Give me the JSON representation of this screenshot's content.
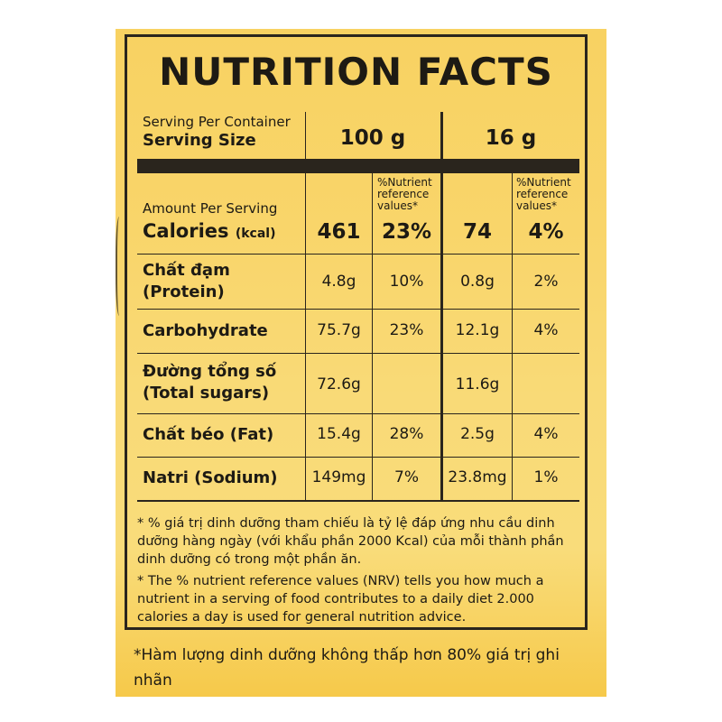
{
  "title": "NUTRITION FACTS",
  "header": {
    "serving_per_container": "Serving Per Container",
    "serving_size": "Serving Size",
    "col_100": "100 g",
    "col_16": "16 g"
  },
  "nrv_header": "%Nutrient reference values*",
  "calories": {
    "amount_per_serving": "Amount Per Serving",
    "label": "Calories",
    "unit": "(kcal)",
    "v100": "461",
    "p100": "23%",
    "v16": "74",
    "p16": "4%"
  },
  "rows": [
    {
      "label1": "Chất đạm",
      "label2": "(Protein)",
      "v100": "4.8g",
      "p100": "10%",
      "v16": "0.8g",
      "p16": "2%"
    },
    {
      "label1": "Carbohydrate",
      "label2": "",
      "v100": "75.7g",
      "p100": "23%",
      "v16": "12.1g",
      "p16": "4%"
    },
    {
      "label1": "Đường tổng số",
      "label2": "(Total sugars)",
      "v100": "72.6g",
      "p100": "",
      "v16": "11.6g",
      "p16": ""
    },
    {
      "label1": "Chất béo (Fat)",
      "label2": "",
      "v100": "15.4g",
      "p100": "28%",
      "v16": "2.5g",
      "p16": "4%"
    },
    {
      "label1": "Natri (Sodium)",
      "label2": "",
      "v100": "149mg",
      "p100": "7%",
      "v16": "23.8mg",
      "p16": "1%"
    }
  ],
  "notes": {
    "vi": "* % giá trị dinh dưỡng tham chiếu là tỷ lệ đáp ứng nhu cầu dinh dưỡng hàng ngày (với khẩu phần 2000 Kcal) của mỗi thành phần dinh dưỡng có trong một phần ăn.",
    "en": "* The % nutrient reference values (NRV) tells you how much a nutrient in a serving of food contributes to a daily diet 2.000 calories a day is used for general nutrition advice."
  },
  "bottom_note": "*Hàm lượng dinh dưỡng không thấp hơn 80% giá trị ghi nhãn"
}
